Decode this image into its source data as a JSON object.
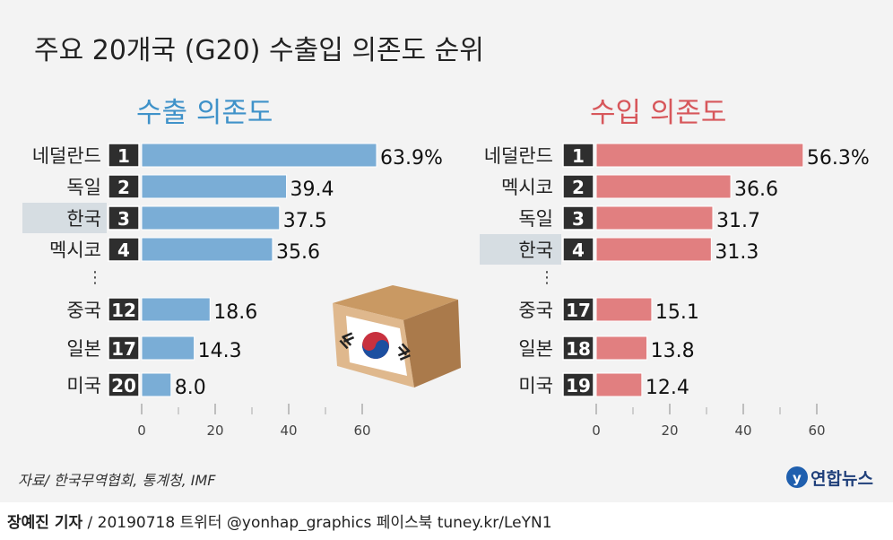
{
  "title": "주요 20개국 (G20) 수출입 의존도 순위",
  "source": "자료/ 한국무역협회, 통계청, IMF",
  "logo_text": "연합뉴스",
  "footer": {
    "author": "장예진 기자",
    "details": " / 20190718 트위터 @yonhap_graphics  페이스북 tuney.kr/LeYN1"
  },
  "colors": {
    "export_bar": "#7aadd6",
    "import_bar": "#e17f80",
    "export_title": "#3f92c9",
    "import_title": "#d7575b",
    "rank_box": "#2e2e2e",
    "highlight": "#d6dde2"
  },
  "chart_data": [
    {
      "type": "bar",
      "orientation": "horizontal",
      "title": "수출 의존도",
      "categories": [
        "네덜란드",
        "독일",
        "한국",
        "멕시코",
        "중국",
        "일본",
        "미국"
      ],
      "ranks": [
        "1",
        "2",
        "3",
        "4",
        "12",
        "17",
        "20"
      ],
      "values": [
        63.9,
        39.4,
        37.5,
        35.6,
        18.6,
        14.3,
        8.0
      ],
      "value_labels": [
        "63.9%",
        "39.4",
        "37.5",
        "35.6",
        "18.6",
        "14.3",
        "8.0"
      ],
      "highlight": "한국",
      "gap_marker": "⋮",
      "xlim": [
        0,
        60
      ],
      "xticks": [
        "0",
        "20",
        "40",
        "60"
      ]
    },
    {
      "type": "bar",
      "orientation": "horizontal",
      "title": "수입 의존도",
      "categories": [
        "네덜란드",
        "멕시코",
        "독일",
        "한국",
        "중국",
        "일본",
        "미국"
      ],
      "ranks": [
        "1",
        "2",
        "3",
        "4",
        "17",
        "18",
        "19"
      ],
      "values": [
        56.3,
        36.6,
        31.7,
        31.3,
        15.1,
        13.8,
        12.4
      ],
      "value_labels": [
        "56.3%",
        "36.6",
        "31.7",
        "31.3",
        "15.1",
        "13.8",
        "12.4"
      ],
      "highlight": "한국",
      "gap_marker": "⋮",
      "xlim": [
        0,
        60
      ],
      "xticks": [
        "0",
        "20",
        "40",
        "60"
      ]
    }
  ]
}
